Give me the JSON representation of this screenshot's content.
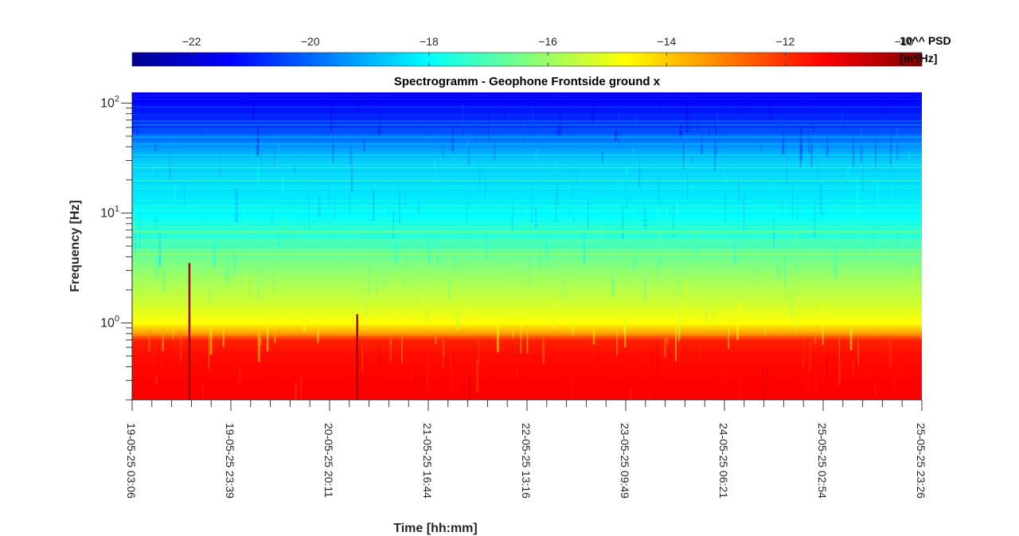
{
  "chart_data": {
    "type": "heatmap",
    "title": "Spectrogramm - Geophone Frontside ground x",
    "xlabel": "Time [hh:mm]",
    "ylabel": "Frequency [Hz]",
    "yscale": "log",
    "ylim": [
      0.2,
      125
    ],
    "y_ticks": [
      {
        "label_base": "10",
        "label_exp": "0",
        "value": 1
      },
      {
        "label_base": "10",
        "label_exp": "1",
        "value": 10
      },
      {
        "label_base": "10",
        "label_exp": "2",
        "value": 100
      }
    ],
    "x_tick_labels": [
      "19-05-25 03:06",
      "19-05-25 23:39",
      "20-05-25 20:11",
      "21-05-25 16:44",
      "22-05-25 13:16",
      "23-05-25 09:49",
      "24-05-25 06:21",
      "25-05-25 02:54",
      "25-05-25 23:26"
    ],
    "x_minor_ticks_between_labels": 4,
    "colorbar": {
      "label_line1": "10^^ PSD",
      "label_line2": "[m²/Hz]",
      "range": [
        -23,
        -9.7
      ],
      "ticks": [
        -22,
        -20,
        -18,
        -16,
        -14,
        -12,
        -10
      ],
      "colormap": "jet"
    },
    "approx_psd_levels_log10": {
      "above_60Hz": -21,
      "10_to_60Hz": -18.5,
      "5_to_10Hz": -17.5,
      "1_to_5Hz": -15,
      "below_0.7Hz": -11.5
    },
    "transients": [
      {
        "time": "19-05-25 ~16:00",
        "max_frequency_hz": 3.5
      },
      {
        "time": "20-05-25 ~23:00",
        "max_frequency_hz": 1.2
      }
    ]
  }
}
